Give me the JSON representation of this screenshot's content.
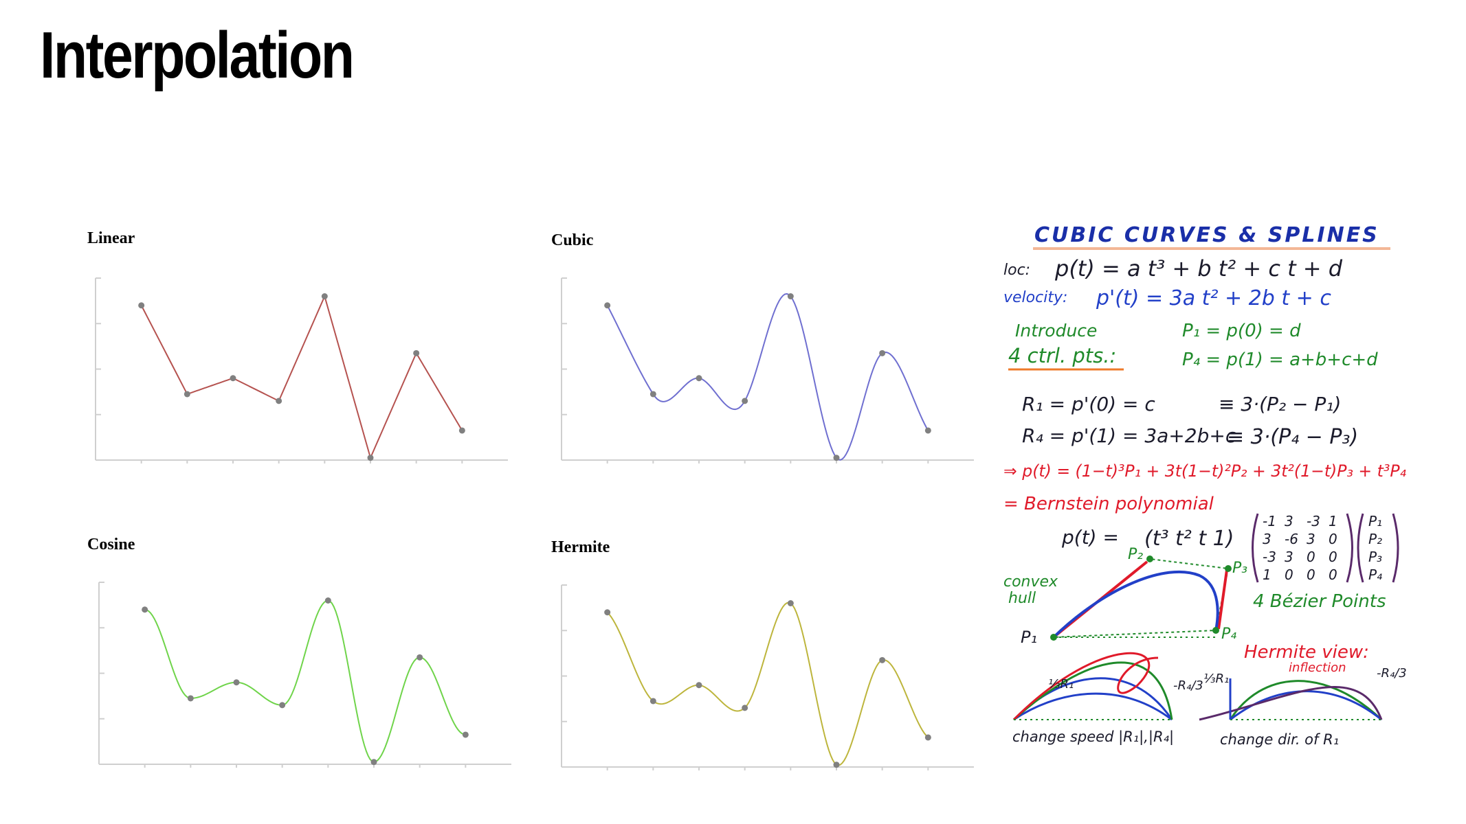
{
  "slide": {
    "title": "Interpolation"
  },
  "chart_data": [
    {
      "type": "line",
      "title": "Linear",
      "interpolation": "linear",
      "color": "#b5524f",
      "x": [
        1,
        2,
        3,
        4,
        5,
        6,
        7,
        8
      ],
      "series": [
        {
          "values": [
            3.4,
            1.45,
            1.8,
            1.3,
            3.6,
            0.05,
            2.35,
            0.65
          ]
        }
      ],
      "ylim": [
        0,
        4
      ],
      "xlim": [
        0,
        9
      ],
      "grid": false
    },
    {
      "type": "line",
      "title": "Cubic",
      "interpolation": "cubic",
      "color": "#6f6fd0",
      "x": [
        1,
        2,
        3,
        4,
        5,
        6,
        7,
        8
      ],
      "series": [
        {
          "values": [
            3.4,
            1.45,
            1.8,
            1.3,
            3.6,
            0.05,
            2.35,
            0.65
          ]
        }
      ],
      "ylim": [
        0,
        4
      ],
      "xlim": [
        0,
        9
      ],
      "grid": false
    },
    {
      "type": "line",
      "title": "Cosine",
      "interpolation": "cosine",
      "color": "#6fd44a",
      "x": [
        1,
        2,
        3,
        4,
        5,
        6,
        7,
        8
      ],
      "series": [
        {
          "values": [
            3.4,
            1.45,
            1.8,
            1.3,
            3.6,
            0.05,
            2.35,
            0.65
          ]
        }
      ],
      "ylim": [
        0,
        4
      ],
      "xlim": [
        0,
        9
      ],
      "grid": false
    },
    {
      "type": "line",
      "title": "Hermite",
      "interpolation": "hermite",
      "color": "#bdb53c",
      "x": [
        1,
        2,
        3,
        4,
        5,
        6,
        7,
        8
      ],
      "series": [
        {
          "values": [
            3.4,
            1.45,
            1.8,
            1.3,
            3.6,
            0.05,
            2.35,
            0.65
          ]
        }
      ],
      "ylim": [
        0,
        4
      ],
      "xlim": [
        0,
        9
      ],
      "grid": false
    }
  ],
  "notes": {
    "heading": "CUBIC CURVES & SPLINES",
    "line_loc_label": "loc:",
    "line_loc_eq": "p(t) = a t³ + b t² + c t + d",
    "line_vel_label": "velocity:",
    "line_vel_eq": "p'(t) = 3a t² + 2b t + c",
    "intro_1": "Introduce",
    "intro_2": "4 ctrl. pts.:",
    "p1_eq": "P₁ = p(0) = d",
    "p4_eq": "P₄ = p(1) = a+b+c+d",
    "r1_eq": "R₁ = p'(0) = c",
    "r1_rhs": "≡ 3·(P₂ − P₁)",
    "r4_eq": "R₄ = p'(1) = 3a+2b+c",
    "r4_rhs": "≡ 3·(P₄ − P₃)",
    "bern_eq": "⇒ p(t) = (1−t)³P₁ + 3t(1−t)²P₂ + 3t²(1−t)P₃ + t³P₄",
    "bern_label": "= Bernstein polynomial",
    "matrix_lhs": "p(t) =",
    "matrix_row_vec": "(t³ t² t 1)",
    "matrix": [
      [
        "-1",
        "3",
        "-3",
        "1"
      ],
      [
        "3",
        "-6",
        "3",
        "0"
      ],
      [
        "-3",
        "3",
        "0",
        "0"
      ],
      [
        "1",
        "0",
        "0",
        "0"
      ]
    ],
    "pvec": [
      "P₁",
      "P₂",
      "P₃",
      "P₄"
    ],
    "convex_1": "convex",
    "convex_2": "hull",
    "bezier_points": "4 Bézier Points",
    "pt_p1": "P₁",
    "pt_p2": "P₂",
    "pt_p3": "P₃",
    "pt_p4": "P₄",
    "hermite_view": "Hermite view:",
    "inflection": "inflection",
    "r1_third": "⅓R₁",
    "r4_third": "-R₄/3",
    "change_speed": "change speed |R₁|,|R₄|",
    "change_dir": "change dir. of R₁"
  },
  "colors": {
    "heading_blue": "#1a2fa8",
    "ink_black": "#1b1b2b",
    "ink_blue": "#2240c8",
    "ink_green": "#1f8a2a",
    "ink_red": "#e01a2a",
    "ink_purple": "#5a2a6a",
    "ink_orange": "#ee7a2a"
  }
}
